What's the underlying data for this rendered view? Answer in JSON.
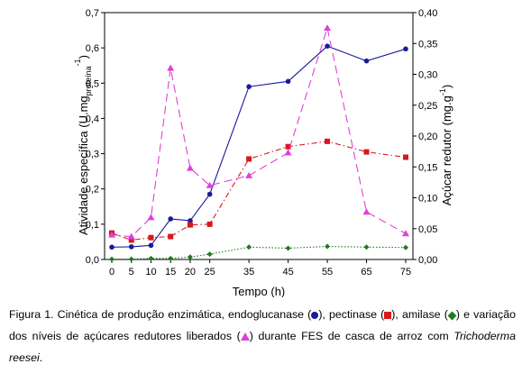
{
  "chart_data": {
    "type": "line",
    "x": [
      0,
      5,
      10,
      15,
      20,
      25,
      35,
      45,
      55,
      65,
      75
    ],
    "xlabel": "Tempo (h)",
    "ylabel_left": {
      "main": "Atividade específica (U.mg",
      "sub": "proteína",
      "sup": "-1",
      "end": ")"
    },
    "ylabel_right": "Açúcar redutor (mg.g",
    "ylabel_right_sup": "-1",
    "ylabel_right_end": ")",
    "ylim_left": [
      0,
      0.7
    ],
    "ylim_right": [
      0,
      0.4
    ],
    "x_ticks": [
      "0",
      "5",
      "10",
      "15",
      "20",
      "25",
      "35",
      "45",
      "55",
      "65",
      "75"
    ],
    "y_ticks_left": [
      "0,0",
      "0,1",
      "0,2",
      "0,3",
      "0,4",
      "0,5",
      "0,6",
      "0,7"
    ],
    "y_ticks_right": [
      "0,00",
      "0,05",
      "0,10",
      "0,15",
      "0,20",
      "0,25",
      "0,30",
      "0,35",
      "0,40"
    ],
    "grid": false,
    "legend": "none",
    "series": [
      {
        "axis": "left",
        "marker": "circle",
        "color": "#1a1a9c",
        "line": "solid",
        "values": [
          0.035,
          0.036,
          0.04,
          0.115,
          0.11,
          0.185,
          0.49,
          0.505,
          0.605,
          0.563,
          0.597
        ]
      },
      {
        "axis": "left",
        "marker": "square",
        "color": "#d8181c",
        "line": "dashdot",
        "values": [
          0.075,
          0.055,
          0.062,
          0.065,
          0.098,
          0.1,
          0.285,
          0.32,
          0.335,
          0.305,
          0.29
        ]
      },
      {
        "axis": "left",
        "marker": "diamond",
        "color": "#1f7a1f",
        "line": "dotted",
        "values": [
          0.001,
          0.001,
          0.003,
          0.003,
          0.007,
          0.015,
          0.035,
          0.032,
          0.037,
          0.035,
          0.034
        ]
      },
      {
        "axis": "right",
        "marker": "triangle",
        "color": "#e040d8",
        "line": "dashed",
        "values": [
          0.04,
          0.037,
          0.068,
          0.31,
          0.148,
          0.12,
          0.136,
          0.173,
          0.375,
          0.077,
          0.042
        ]
      }
    ]
  },
  "caption": {
    "part1": "Figura 1. Cinética de produção enzimática, endoglucanase (",
    "part2": "), pectinase (",
    "part3": "), amilase (",
    "part4": ") e variação dos níveis de açúcares redutores liberados (",
    "part5": ") durante FES de casca de arroz com ",
    "species": "Trichoderma reesei",
    "end": "."
  }
}
